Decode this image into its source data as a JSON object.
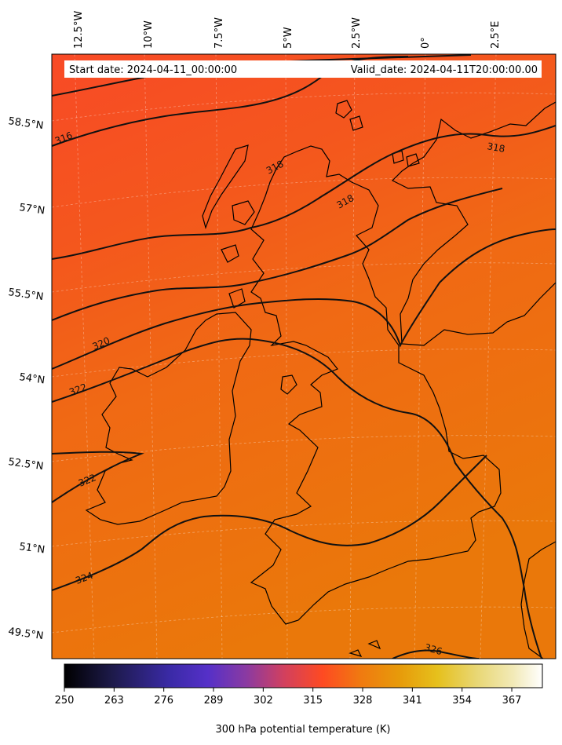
{
  "map": {
    "start_date": "Start date: 2024-04-11_00:00:00",
    "valid_date": "Valid_date: 2024-04-11T20:00:00.00",
    "field": "300 hPa potential temperature",
    "lon_labels": [
      "12.5°W",
      "10°W",
      "7.5°W",
      "5°W",
      "2.5°W",
      "0°",
      "2.5°E"
    ],
    "lat_labels": [
      "58.5°N",
      "57°N",
      "55.5°N",
      "54°N",
      "52.5°N",
      "51°N",
      "49.5°N"
    ],
    "contour_labels": [
      "316",
      "318",
      "318",
      "318",
      "320",
      "322",
      "322",
      "324",
      "326"
    ],
    "colors": {
      "warm_north": "#f84a26",
      "mid": "#f26018",
      "south": "#ec760c",
      "contour": "#111111",
      "coast": "#000000"
    }
  },
  "colorbar": {
    "label": "300 hPa potential temperature (K)",
    "ticks": [
      "250",
      "263",
      "276",
      "289",
      "302",
      "315",
      "328",
      "341",
      "354",
      "367"
    ],
    "range": [
      250,
      375
    ],
    "colormap": "CMRmap"
  }
}
